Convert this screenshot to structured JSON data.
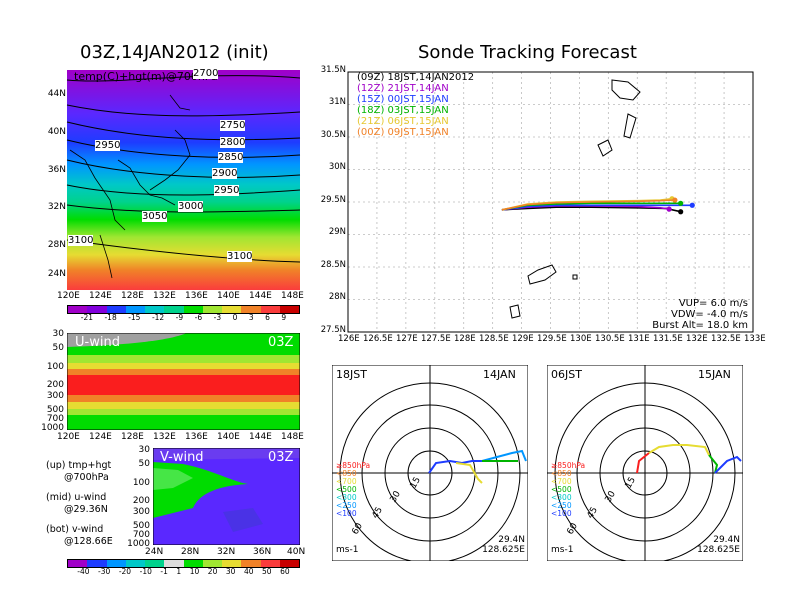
{
  "left_title": "03Z,14JAN2012 (init)",
  "right_title": "Sonde Tracking Forecast",
  "map_panel": {
    "label": "temp(C)+hgt(m)@700hPa",
    "lat_ticks": [
      "44N",
      "40N",
      "36N",
      "32N",
      "28N",
      "24N"
    ],
    "lon_ticks": [
      "120E",
      "124E",
      "128E",
      "132E",
      "136E",
      "140E",
      "144E",
      "148E"
    ],
    "contour_labels": [
      "2700",
      "2750",
      "2800",
      "2850",
      "2900",
      "2950",
      "2950",
      "3000",
      "3050",
      "3100",
      "3100"
    ],
    "colorbar_ticks": [
      "-21",
      "-18",
      "-15",
      "-12",
      "-9",
      "-6",
      "-3",
      "0",
      "3",
      "6",
      "9"
    ],
    "colorbar_colors": [
      "#a000c8",
      "#8200dc",
      "#1e3cff",
      "#0096ff",
      "#00c8c8",
      "#00d28c",
      "#00dc00",
      "#a0e632",
      "#e6dc32",
      "#f08228",
      "#fa3c3c",
      "#c80000"
    ]
  },
  "uwind_panel": {
    "title": "U-wind",
    "time": "03Z",
    "p_ticks": [
      "30",
      "50",
      "100",
      "200",
      "300",
      "500",
      "700",
      "1000"
    ],
    "lon_ticks": [
      "120E",
      "124E",
      "128E",
      "132E",
      "136E",
      "140E",
      "144E",
      "148E"
    ]
  },
  "vwind_panel": {
    "title": "V-wind",
    "time": "03Z",
    "p_ticks": [
      "30",
      "50",
      "100",
      "200",
      "300",
      "500",
      "700",
      "1000"
    ],
    "lat_ticks": [
      "24N",
      "28N",
      "32N",
      "36N",
      "40N"
    ],
    "colorbar_ticks": [
      "-40",
      "-30",
      "-20",
      "-10",
      "-1",
      "1",
      "10",
      "20",
      "30",
      "40",
      "50",
      "60"
    ],
    "colorbar_colors": [
      "#a000c8",
      "#1e3cff",
      "#0096ff",
      "#00c8c8",
      "#00d28c",
      "#dcdcdc",
      "#00dc00",
      "#a0e632",
      "#e6dc32",
      "#f08228",
      "#fa3c3c",
      "#c80000"
    ]
  },
  "side_notes": [
    {
      "a": "(up) tmp+hgt",
      "b": "@700hPa"
    },
    {
      "a": "(mid) u-wind",
      "b": "@29.36N"
    },
    {
      "a": "(bot) v-wind",
      "b": "@128.66E"
    }
  ],
  "track_panel": {
    "legend": [
      {
        "text": "(09Z)  18JST,14JAN2012",
        "color": "#000000"
      },
      {
        "text": "(12Z)  21JST,14JAN",
        "color": "#a000c8"
      },
      {
        "text": "(15Z)  00JST,15JAN",
        "color": "#1e3cff"
      },
      {
        "text": "(18Z)  03JST,15JAN",
        "color": "#00b400"
      },
      {
        "text": "(21Z)  06JST,15JAN",
        "color": "#e6c832"
      },
      {
        "text": "(00Z)  09JST,15JAN",
        "color": "#f08228"
      }
    ],
    "lat_ticks": [
      "31.5N",
      "31N",
      "30.5N",
      "30N",
      "29.5N",
      "29N",
      "28.5N",
      "28N",
      "27.5N"
    ],
    "lon_ticks": [
      "126E",
      "126.5E",
      "127E",
      "127.5E",
      "128E",
      "128.5E",
      "129E",
      "129.5E",
      "130E",
      "130.5E",
      "131E",
      "131.5E",
      "132E",
      "132.5E",
      "133E"
    ],
    "params": [
      "VUP=  6.0  m/s",
      "VDW=  -4.0  m/s",
      "Burst Alt=  18.0  km"
    ]
  },
  "chart_data": {
    "type": "line",
    "title": "Sonde Tracking Forecast",
    "xlim": [
      126,
      133
    ],
    "ylim": [
      27.5,
      31.5
    ],
    "series": [
      {
        "name": "(09Z)  18JST,14JAN2012",
        "x": [
          128.66,
          129.1,
          129.6,
          130.2,
          131.0,
          131.5,
          131.75
        ],
        "y": [
          29.38,
          29.4,
          29.42,
          29.42,
          29.41,
          29.4,
          29.35
        ]
      },
      {
        "name": "(12Z)  21JST,14JAN",
        "x": [
          128.66,
          129.1,
          129.6,
          130.2,
          131.0,
          131.4,
          131.55
        ],
        "y": [
          29.38,
          29.42,
          29.44,
          29.44,
          29.43,
          29.41,
          29.39
        ]
      },
      {
        "name": "(15Z)  00JST,15JAN",
        "x": [
          128.66,
          129.1,
          129.6,
          130.2,
          131.0,
          131.6,
          131.95
        ],
        "y": [
          29.38,
          29.43,
          29.45,
          29.45,
          29.45,
          29.45,
          29.45
        ]
      },
      {
        "name": "(18Z)  03JST,15JAN",
        "x": [
          128.66,
          129.1,
          129.6,
          130.2,
          131.0,
          131.5,
          131.75
        ],
        "y": [
          29.38,
          29.45,
          29.47,
          29.48,
          29.48,
          29.48,
          29.48
        ]
      },
      {
        "name": "(21Z)  06JST,15JAN",
        "x": [
          128.66,
          129.1,
          129.6,
          130.2,
          131.0,
          131.4,
          131.6
        ],
        "y": [
          29.38,
          29.47,
          29.5,
          29.51,
          29.52,
          29.53,
          29.55
        ]
      },
      {
        "name": "(00Z)  09JST,15JAN",
        "x": [
          128.66,
          129.1,
          129.6,
          130.2,
          131.0,
          131.4,
          131.65
        ],
        "y": [
          29.38,
          29.46,
          29.49,
          29.5,
          29.51,
          29.52,
          29.53
        ]
      }
    ]
  },
  "hodographs": [
    {
      "left_label": "18JST",
      "right_label": "14JAN",
      "ring_labels": [
        "15",
        "30",
        "45",
        "60"
      ],
      "unit": "ms-1",
      "loc_lat": "29.4N",
      "loc_lon": "128.625E",
      "legend": [
        "≥850hPa",
        "<850",
        "<700",
        "<500",
        "<300",
        "<250",
        "<100"
      ]
    },
    {
      "left_label": "06JST",
      "right_label": "15JAN",
      "ring_labels": [
        "15",
        "30",
        "45",
        "60"
      ],
      "unit": "ms-1",
      "loc_lat": "29.4N",
      "loc_lon": "128.625E",
      "legend": [
        "≥850hPa",
        "<850",
        "<700",
        "<500",
        "<300",
        "<250",
        "<100"
      ]
    }
  ]
}
